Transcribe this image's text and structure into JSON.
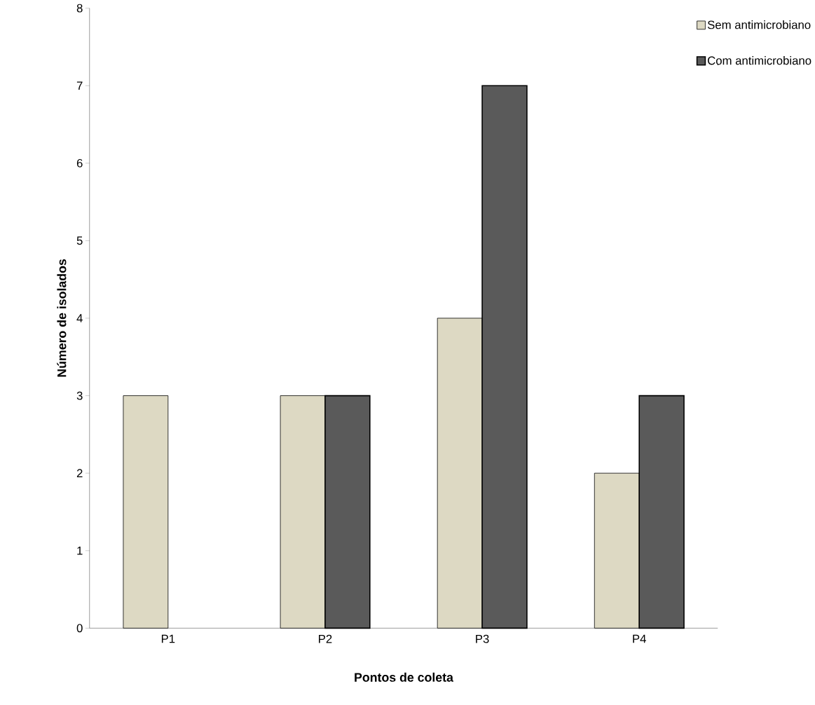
{
  "chart_data": {
    "type": "bar",
    "xlabel": "Pontos de coleta",
    "ylabel": "Número de isolados",
    "categories": [
      "P1",
      "P2",
      "P3",
      "P4"
    ],
    "series": [
      {
        "name": "Sem antimicrobiano",
        "color": "#ddd9c3",
        "values": [
          3,
          3,
          4,
          2
        ]
      },
      {
        "name": "Com antimicrobiano",
        "color": "#5a5a5a",
        "values": [
          null,
          3,
          7,
          3
        ]
      }
    ],
    "ylim": [
      0,
      8
    ],
    "yticks": [
      0,
      1,
      2,
      3,
      4,
      5,
      6,
      7,
      8
    ],
    "legend": "top right"
  }
}
